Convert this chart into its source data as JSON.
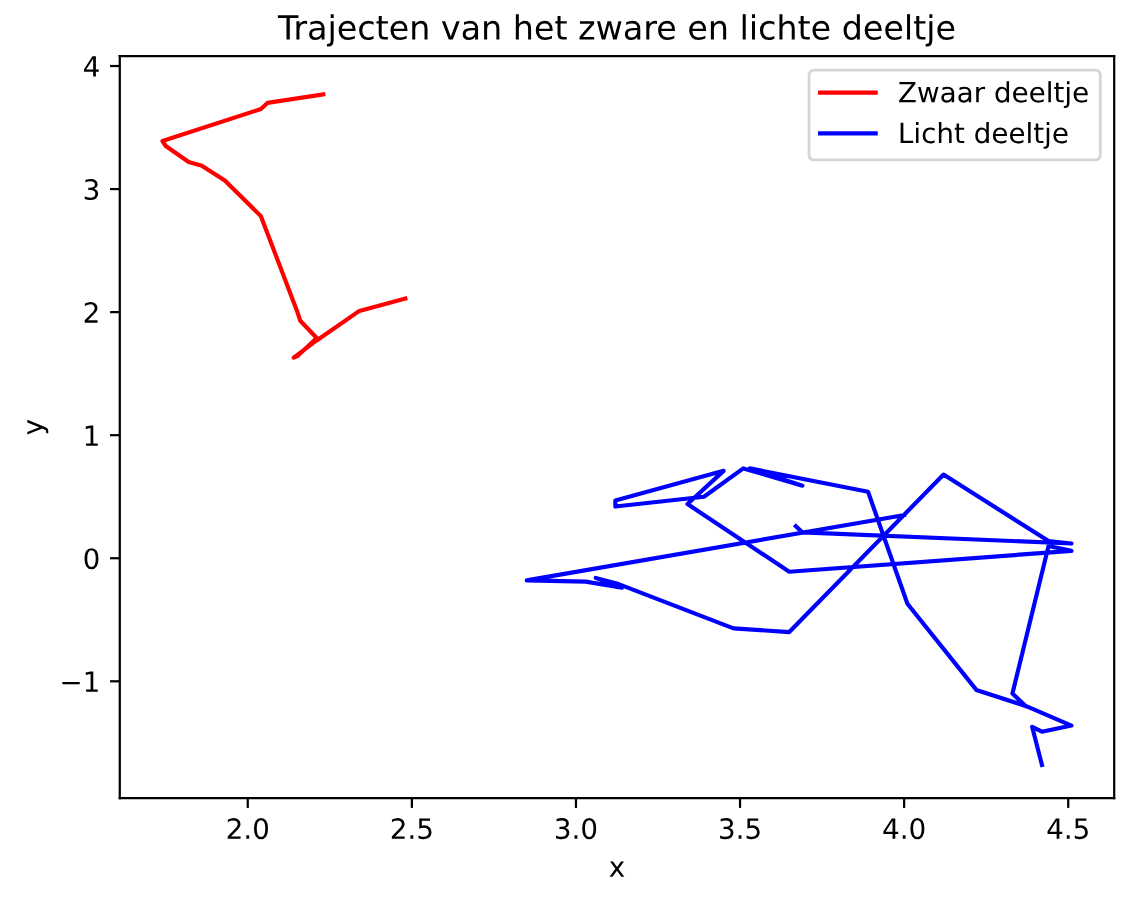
{
  "chart_data": {
    "type": "line",
    "title": "Trajecten van het zware en lichte deeltje",
    "xlabel": "x",
    "ylabel": "y",
    "xlim": [
      1.61,
      4.64
    ],
    "ylim": [
      -1.95,
      4.08
    ],
    "xticks": [
      {
        "value": 2.0,
        "label": "2.0"
      },
      {
        "value": 2.5,
        "label": "2.5"
      },
      {
        "value": 3.0,
        "label": "3.0"
      },
      {
        "value": 3.5,
        "label": "3.5"
      },
      {
        "value": 4.0,
        "label": "4.0"
      },
      {
        "value": 4.5,
        "label": "4.5"
      }
    ],
    "yticks": [
      {
        "value": -1,
        "label": "−1"
      },
      0,
      1,
      2,
      3,
      4
    ],
    "legend": "top right",
    "grid": false,
    "marker": "none",
    "line_style": "solid",
    "series": [
      {
        "name": "Zwaar deeltje",
        "color": "#ff0000",
        "x": [
          2.23,
          2.06,
          2.04,
          1.74,
          1.75,
          1.82,
          1.86,
          1.93,
          2.04,
          2.15,
          2.16,
          2.21,
          2.15,
          2.14,
          2.21,
          2.34,
          2.48
        ],
        "values": [
          3.77,
          3.7,
          3.65,
          3.39,
          3.35,
          3.22,
          3.19,
          3.07,
          2.78,
          2.01,
          1.93,
          1.79,
          1.64,
          1.63,
          1.77,
          2.01,
          2.11
        ]
      },
      {
        "name": "Licht deeltje",
        "color": "#0000ff",
        "x": [
          4.42,
          4.39,
          4.42,
          4.51,
          4.37,
          4.22,
          4.01,
          3.89,
          3.53,
          3.69,
          3.51,
          3.39,
          3.12,
          3.12,
          3.45,
          3.34,
          3.65,
          4.51,
          4.44,
          4.33,
          4.37,
          null,
          3.67,
          3.69,
          4.51,
          4.44,
          4.12,
          3.65,
          3.48,
          3.13,
          3.06,
          3.14,
          3.03,
          2.85,
          4.0
        ],
        "values": [
          -1.68,
          -1.37,
          -1.41,
          -1.36,
          -1.2,
          -1.07,
          -0.37,
          0.54,
          0.73,
          0.59,
          0.73,
          0.5,
          0.42,
          0.47,
          0.71,
          0.44,
          -0.11,
          0.06,
          0.1,
          -1.1,
          -1.2,
          null,
          0.26,
          0.21,
          0.12,
          0.14,
          0.68,
          -0.6,
          -0.57,
          -0.21,
          -0.16,
          -0.24,
          -0.19,
          -0.18,
          0.35
        ]
      }
    ]
  }
}
